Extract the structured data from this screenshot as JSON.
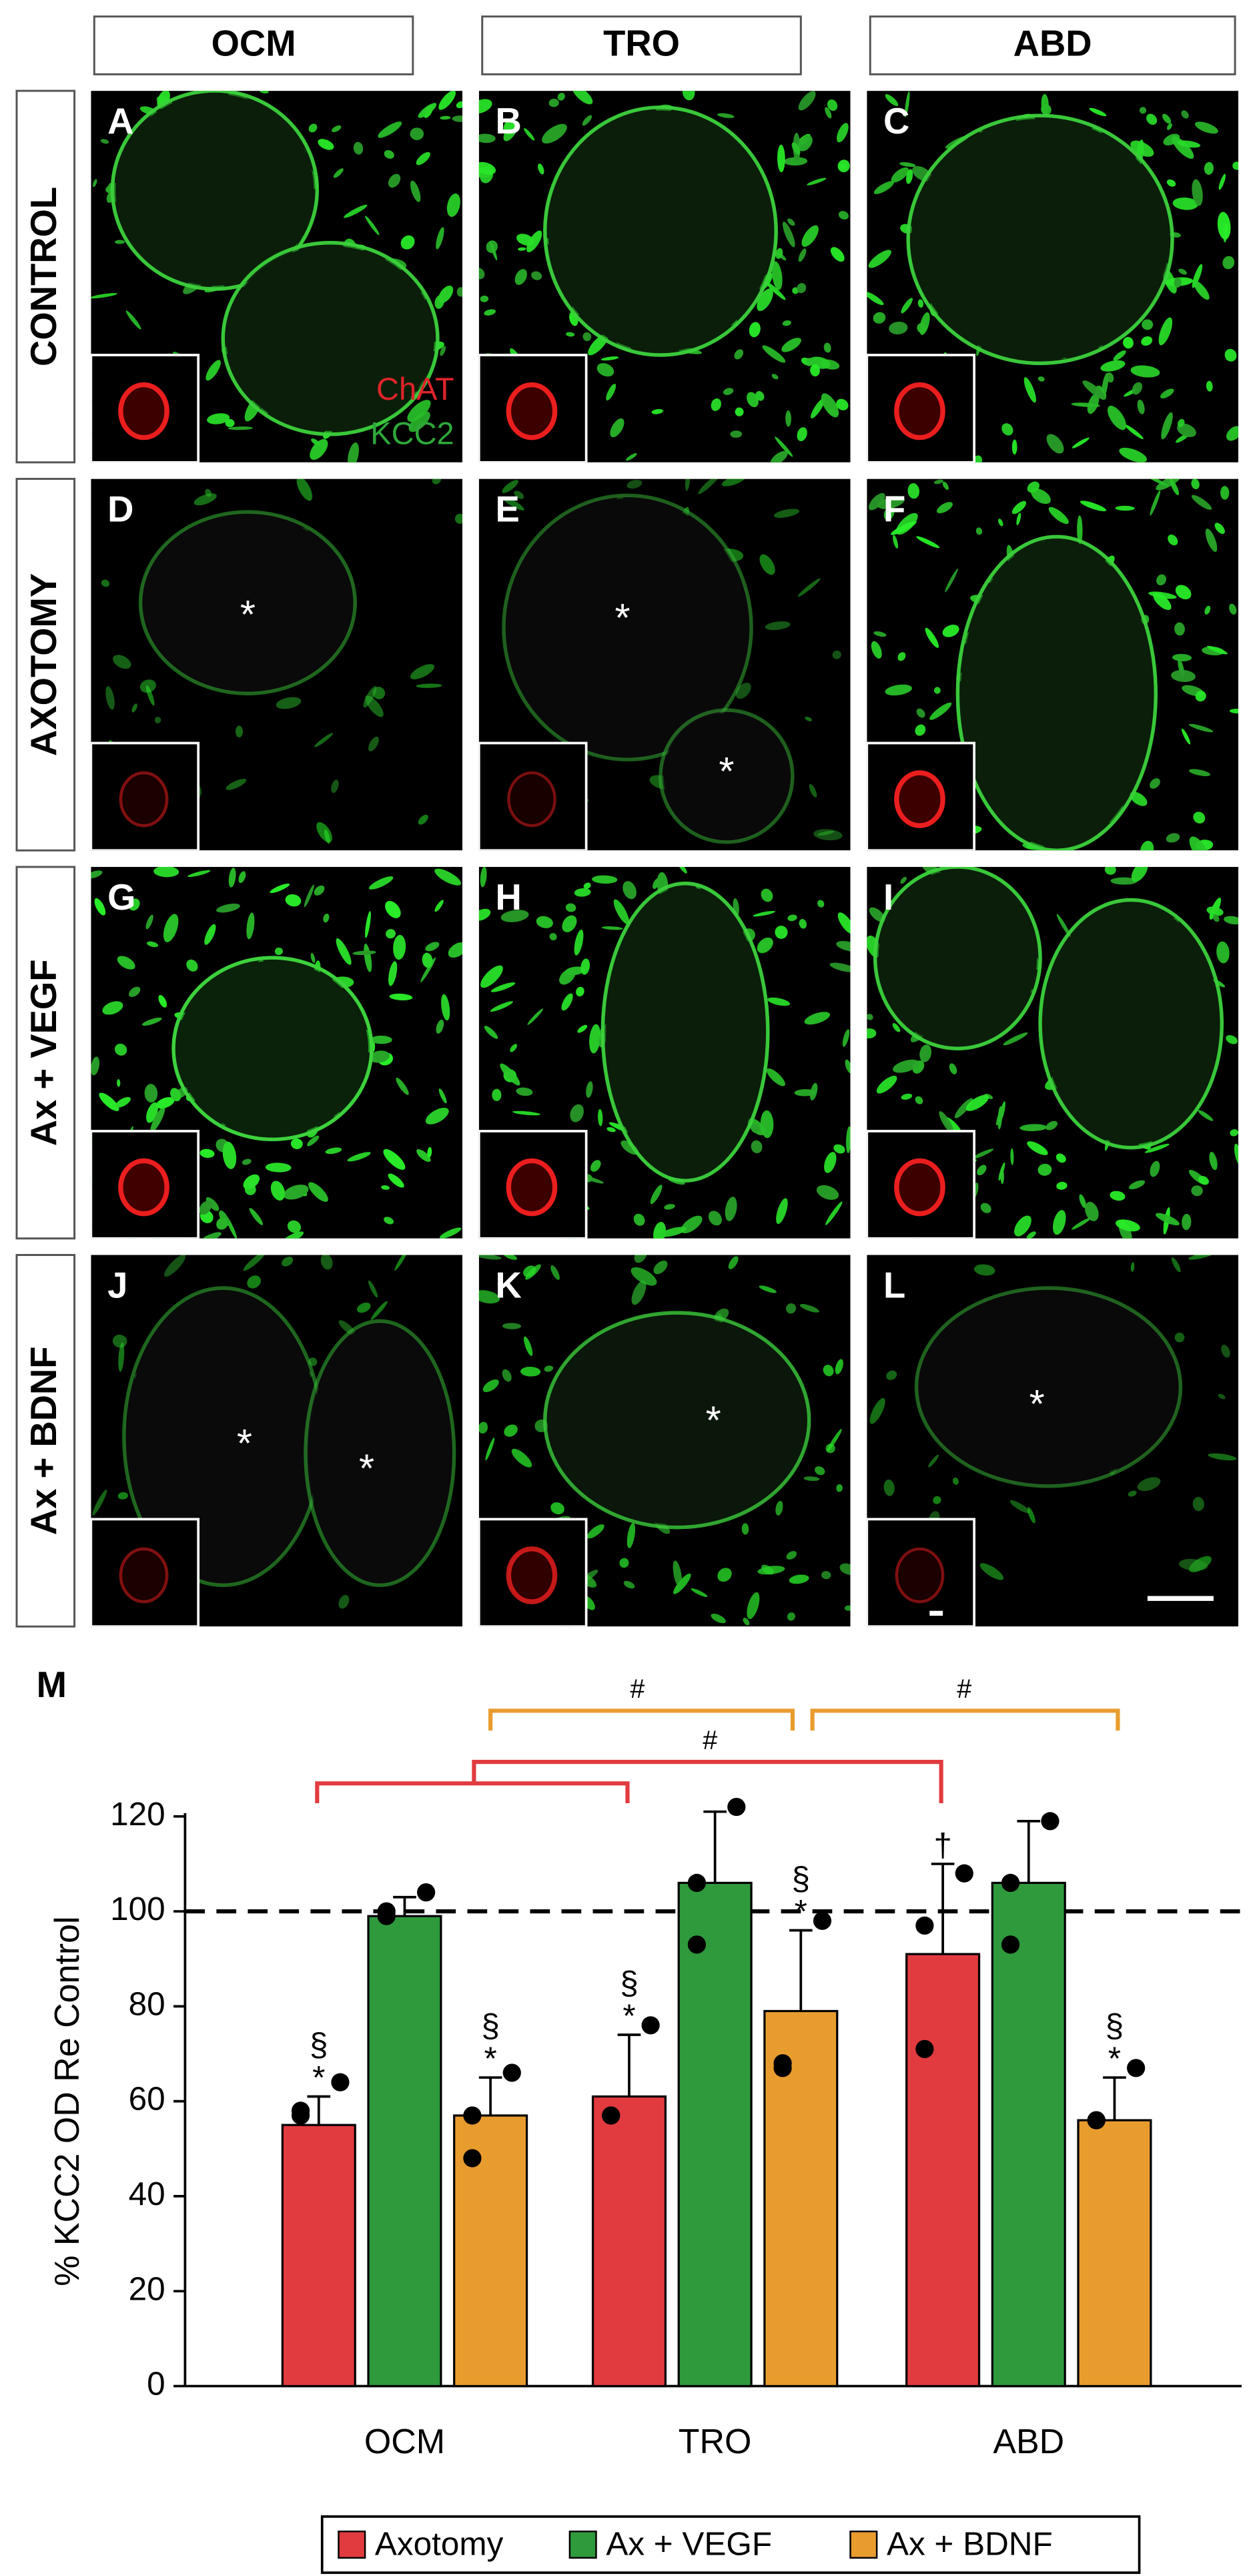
{
  "panels": {
    "columns": [
      "OCM",
      "TRO",
      "ABD"
    ],
    "rows": [
      "CONTROL",
      "AXOTOMY",
      "Ax + VEGF",
      "Ax + BDNF"
    ],
    "items": [
      {
        "letter": "A",
        "labels": [
          "ChAT",
          "KCC2"
        ]
      },
      {
        "letter": "B"
      },
      {
        "letter": "C"
      },
      {
        "letter": "D",
        "marks": [
          "*"
        ]
      },
      {
        "letter": "E",
        "marks": [
          "*",
          "*"
        ]
      },
      {
        "letter": "F"
      },
      {
        "letter": "G"
      },
      {
        "letter": "H"
      },
      {
        "letter": "I"
      },
      {
        "letter": "J",
        "marks": [
          "*",
          "*"
        ]
      },
      {
        "letter": "K",
        "marks": [
          "*"
        ]
      },
      {
        "letter": "L",
        "marks": [
          "*"
        ]
      }
    ]
  },
  "chart_data": {
    "type": "bar",
    "panel_label": "M",
    "y_label": "% KCC2 OD Re Control",
    "categories": [
      "OCM",
      "TRO",
      "ABD"
    ],
    "ylim": [
      0,
      120
    ],
    "yticks": [
      0,
      20,
      40,
      60,
      80,
      100,
      120
    ],
    "reference_line": 100,
    "series": [
      {
        "name": "Axotomy",
        "color": "#e23b3f",
        "values": [
          55,
          61,
          91
        ],
        "errors": [
          6,
          13,
          19
        ],
        "points": [
          [
            64,
            58,
            57
          ],
          [
            76,
            57,
            57
          ],
          [
            108,
            97,
            71
          ]
        ],
        "sig": [
          [
            "§",
            "*"
          ],
          [
            "§",
            "*"
          ],
          [
            "†"
          ]
        ]
      },
      {
        "name": "Ax + VEGF",
        "color": "#2f9a3c",
        "values": [
          99,
          106,
          106
        ],
        "errors": [
          4,
          15,
          13
        ],
        "points": [
          [
            104,
            100,
            99
          ],
          [
            122,
            106,
            93
          ],
          [
            119,
            106,
            93
          ]
        ]
      },
      {
        "name": "Ax + BDNF",
        "color": "#e99c2e",
        "values": [
          57,
          79,
          56
        ],
        "errors": [
          8,
          17,
          9
        ],
        "points": [
          [
            66,
            57,
            48
          ],
          [
            98,
            68,
            67
          ],
          [
            67,
            56,
            56
          ]
        ],
        "sig": [
          [
            "§",
            "*"
          ],
          [
            "§",
            "*"
          ],
          [
            "§",
            "*"
          ]
        ]
      }
    ],
    "brackets": [
      "#",
      "#",
      "#"
    ]
  }
}
